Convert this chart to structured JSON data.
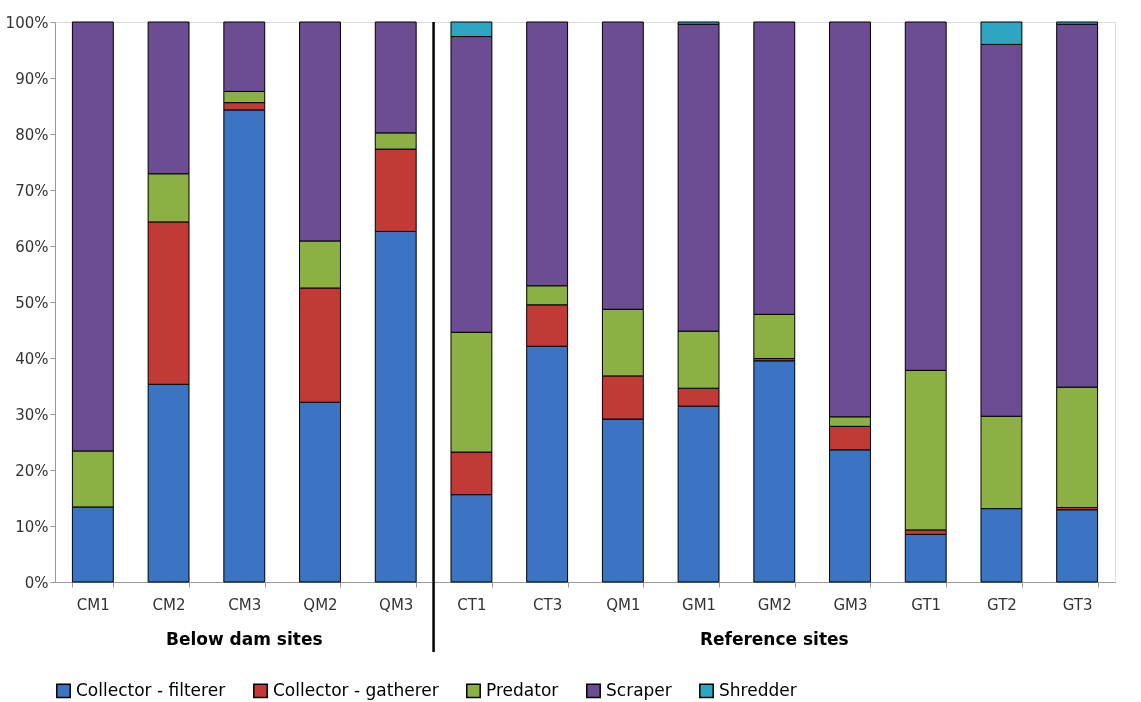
{
  "chart_data": {
    "type": "bar",
    "stacked": true,
    "categories": [
      "CM1",
      "CM2",
      "CM3",
      "QM2",
      "QM3",
      "CT1",
      "CT3",
      "QM1",
      "GM1",
      "GM2",
      "GM3",
      "GT1",
      "GT2",
      "GT3"
    ],
    "series": [
      {
        "name": "Collector - filterer",
        "color": "#3a74c2",
        "values": [
          13.4,
          35.3,
          84.3,
          32.1,
          62.6,
          15.6,
          42.1,
          29.1,
          31.4,
          39.5,
          23.6,
          8.5,
          13.1,
          12.9
        ]
      },
      {
        "name": "Collector - gatherer",
        "color": "#c13a36",
        "values": [
          0,
          29.0,
          1.3,
          20.4,
          14.7,
          7.6,
          7.4,
          7.7,
          3.2,
          0.4,
          4.2,
          0.8,
          0,
          0.4
        ]
      },
      {
        "name": "Predator",
        "color": "#8cb043",
        "values": [
          10.0,
          8.6,
          2.0,
          8.4,
          2.9,
          21.4,
          3.4,
          11.9,
          10.2,
          7.9,
          1.7,
          28.5,
          16.5,
          21.5
        ]
      },
      {
        "name": "Scraper",
        "color": "#6c4c93",
        "values": [
          76.6,
          27.1,
          12.4,
          39.1,
          19.8,
          52.8,
          47.1,
          51.3,
          54.8,
          52.2,
          70.5,
          62.2,
          66.4,
          64.8
        ]
      },
      {
        "name": "Shredder",
        "color": "#2fa5c4",
        "values": [
          0,
          0,
          0,
          0,
          0,
          2.6,
          0,
          0,
          0.4,
          0,
          0,
          0,
          4.0,
          0.4
        ]
      }
    ],
    "ylim": [
      0,
      100
    ],
    "yticks": [
      {
        "value": 0,
        "label": "0%"
      },
      {
        "value": 10,
        "label": "10%"
      },
      {
        "value": 20,
        "label": "20%"
      },
      {
        "value": 30,
        "label": "30%"
      },
      {
        "value": 40,
        "label": "40%"
      },
      {
        "value": 50,
        "label": "50%"
      },
      {
        "value": 60,
        "label": "60%"
      },
      {
        "value": 70,
        "label": "70%"
      },
      {
        "value": 80,
        "label": "80%"
      },
      {
        "value": 90,
        "label": "90%"
      },
      {
        "value": 100,
        "label": "100%"
      }
    ],
    "annotations": [
      "Below dam sites",
      "Reference sites"
    ],
    "grid": false,
    "legend": "bottom"
  }
}
